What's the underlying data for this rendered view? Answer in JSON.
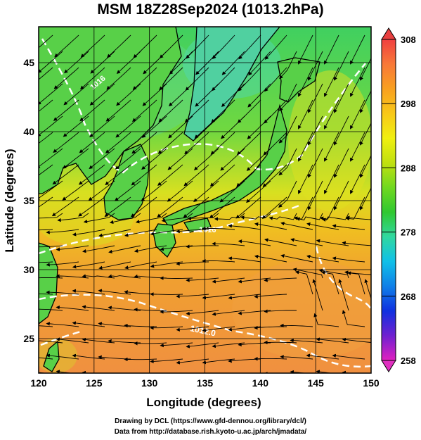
{
  "title": "MSM 18Z28Sep2024 (1013.2hPa)",
  "xaxis": {
    "label": "Longitude (degrees)",
    "ticks": [
      "120",
      "125",
      "130",
      "135",
      "140",
      "145",
      "150"
    ],
    "range": [
      120,
      150
    ]
  },
  "yaxis": {
    "label": "Latitude  (degrees)",
    "ticks": [
      "25",
      "30",
      "35",
      "40",
      "45"
    ],
    "range": [
      22.5,
      47.6
    ]
  },
  "colorbar": {
    "ticks": [
      "258",
      "268",
      "278",
      "288",
      "298",
      "308"
    ],
    "range": [
      258,
      308
    ],
    "colors": [
      "#e020c0",
      "#7020d0",
      "#1030e0",
      "#1080e8",
      "#10c0e8",
      "#30d8a0",
      "#30c830",
      "#70d820",
      "#c0e010",
      "#f0f010",
      "#f8c818",
      "#f8a020",
      "#f87838",
      "#f04040"
    ]
  },
  "contours": [
    {
      "label": "1012.0"
    },
    {
      "label": "1016"
    },
    {
      "label": "1016"
    }
  ],
  "credit_lines": [
    "Drawing by DCL (https://www.gfd-dennou.org/library/dcl/)",
    "Data from http://database.rish.kyoto-u.ac.jp/arch/jmadata/"
  ]
}
